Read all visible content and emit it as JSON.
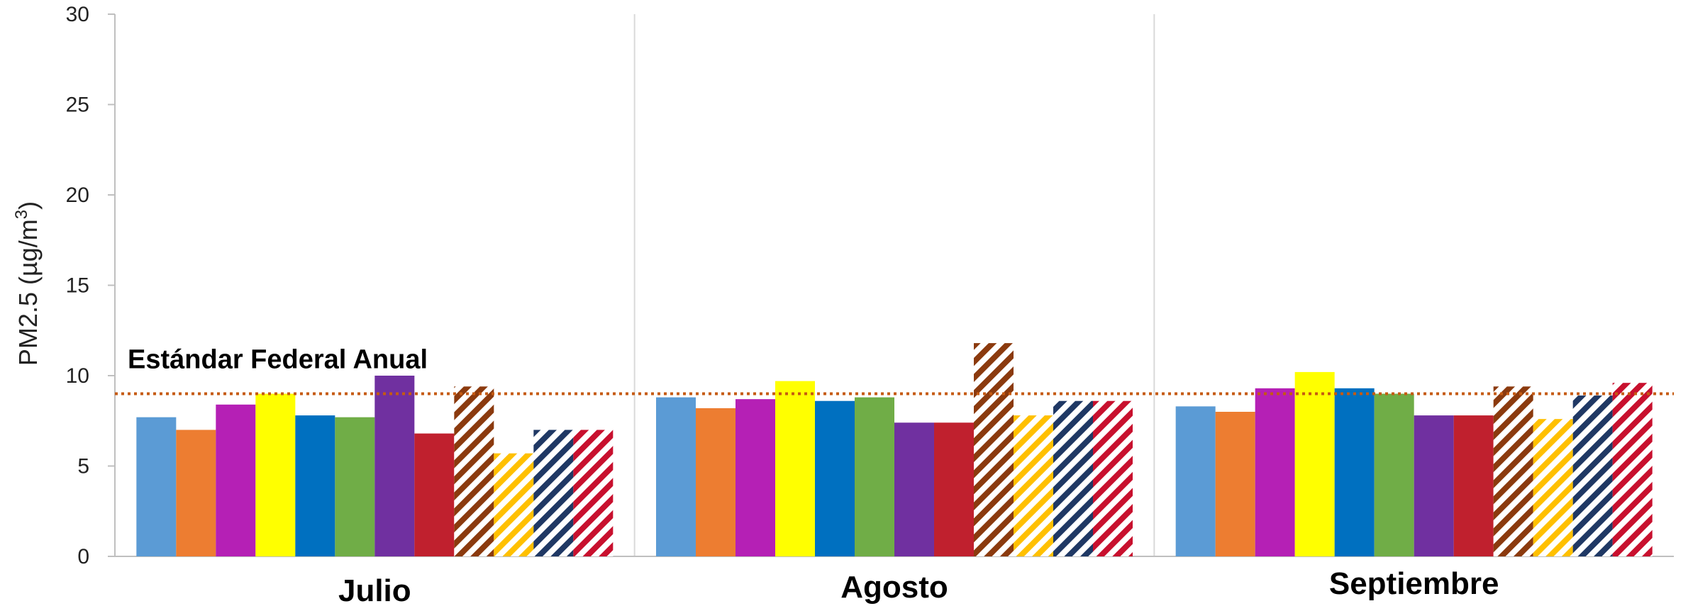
{
  "chart_data": {
    "type": "bar",
    "title": "",
    "ylabel": "PM2.5 (µg/m",
    "ylabel_sup": "3",
    "ylabel_close": ")",
    "xlabel": "",
    "ylim": [
      0,
      30
    ],
    "yticks": [
      0,
      5,
      10,
      15,
      20,
      25,
      30
    ],
    "grid": "vertical separators between categories",
    "legend": "none",
    "categories": [
      "Julio",
      "Agosto",
      "Septiembre"
    ],
    "series": [
      {
        "color": "#5b9bd5",
        "pattern": "solid",
        "values": [
          7.7,
          8.8,
          8.3
        ]
      },
      {
        "color": "#ed7d31",
        "pattern": "solid",
        "values": [
          7.0,
          8.2,
          8.0
        ]
      },
      {
        "color": "#b520b5",
        "pattern": "solid",
        "values": [
          8.4,
          8.7,
          9.3
        ]
      },
      {
        "color": "#ffff00",
        "pattern": "solid",
        "values": [
          9.0,
          9.7,
          10.2
        ]
      },
      {
        "color": "#0070c0",
        "pattern": "solid",
        "values": [
          7.8,
          8.6,
          9.3
        ]
      },
      {
        "color": "#70ad47",
        "pattern": "solid",
        "values": [
          7.7,
          8.8,
          9.0
        ]
      },
      {
        "color": "#7030a0",
        "pattern": "solid",
        "values": [
          10.0,
          7.4,
          7.8
        ]
      },
      {
        "color": "#c0202e",
        "pattern": "solid",
        "values": [
          6.8,
          7.4,
          7.8
        ]
      },
      {
        "color": "#8b3a0e",
        "pattern": "striped",
        "values": [
          9.4,
          11.8,
          9.4
        ]
      },
      {
        "color": "#ffc000",
        "pattern": "striped",
        "values": [
          5.7,
          7.8,
          7.6
        ]
      },
      {
        "color": "#1f3864",
        "pattern": "striped",
        "values": [
          7.0,
          8.6,
          8.9
        ]
      },
      {
        "color": "#c8102e",
        "pattern": "striped",
        "values": [
          7.0,
          8.6,
          9.6
        ]
      }
    ],
    "reference_line": {
      "label": "Estándar Federal Anual",
      "value": 9,
      "color": "#c55a11",
      "style": "dotted"
    }
  }
}
